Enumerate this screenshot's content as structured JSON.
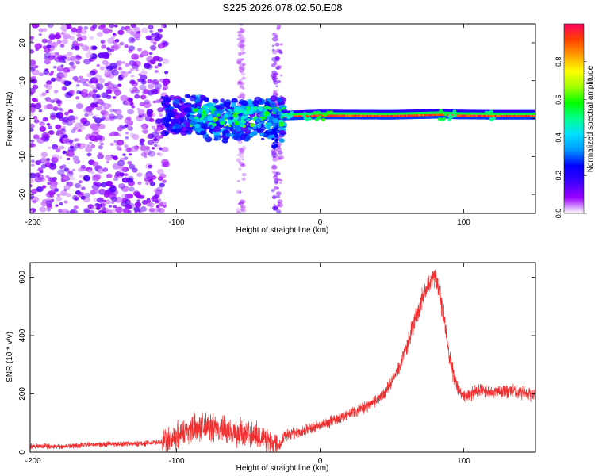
{
  "title": "S225.2026.078.02.50.E08",
  "chart_data": [
    {
      "type": "heatmap",
      "xlabel": "Height of straight line (km)",
      "ylabel": "Frequency (Hz)",
      "xlim": [
        -202,
        150
      ],
      "ylim": [
        -25,
        25
      ],
      "xticks": [
        -200,
        -100,
        0,
        100
      ],
      "yticks": [
        -20,
        -10,
        0,
        10,
        20
      ],
      "colorbar": {
        "label": "Normalized spectral amplitude",
        "range": [
          0,
          1
        ],
        "ticks": [
          "0.0",
          "0.2",
          "0.4",
          "0.6",
          "0.8"
        ],
        "colormap": [
          "#ffffff",
          "#9a00ff",
          "#3c00ff",
          "#0000ff",
          "#0096ff",
          "#00e0ff",
          "#00ff90",
          "#00ff00",
          "#a0ff00",
          "#ffff00",
          "#ffa000",
          "#ff4000",
          "#ff0060"
        ]
      },
      "regions": [
        {
          "x_range": [
            -202,
            -110
          ],
          "description_level": 0.15,
          "freq_spread": [
            -25,
            25
          ]
        },
        {
          "x_range": [
            -110,
            -25
          ],
          "description_level": 0.25,
          "freq_spread": [
            -5,
            7
          ]
        },
        {
          "x_range": [
            -25,
            150
          ],
          "description_level": 1.0,
          "freq_spread": [
            0,
            1.5
          ]
        }
      ],
      "ridge": {
        "x": [
          -25,
          0,
          50,
          85,
          95,
          120,
          150
        ],
        "y": [
          0.5,
          0.8,
          0.7,
          1.0,
          0.8,
          0.7,
          0.7
        ]
      }
    },
    {
      "type": "line",
      "xlabel": "Height of straight line (km)",
      "ylabel": "SNR (10 * v/v)",
      "xlim": [
        -202,
        150
      ],
      "ylim": [
        0,
        650
      ],
      "xticks": [
        -200,
        -100,
        0,
        100
      ],
      "yticks": [
        0,
        200,
        400,
        600
      ],
      "color": "#f03030",
      "series": [
        {
          "x": [
            -202,
            -180,
            -160,
            -140,
            -120,
            -105,
            -95,
            -85,
            -80,
            -75,
            -65,
            -55,
            -45,
            -35,
            -28,
            -25,
            -15,
            0,
            15,
            30,
            45,
            55,
            62,
            68,
            72,
            76,
            79,
            82,
            86,
            90,
            95,
            100,
            110,
            120,
            130,
            140,
            150
          ],
          "y": [
            20,
            20,
            25,
            28,
            30,
            40,
            70,
            90,
            100,
            80,
            75,
            65,
            60,
            40,
            25,
            60,
            70,
            90,
            120,
            150,
            200,
            290,
            390,
            480,
            540,
            580,
            610,
            580,
            470,
            330,
            230,
            190,
            210,
            210,
            210,
            205,
            200
          ]
        }
      ]
    }
  ]
}
